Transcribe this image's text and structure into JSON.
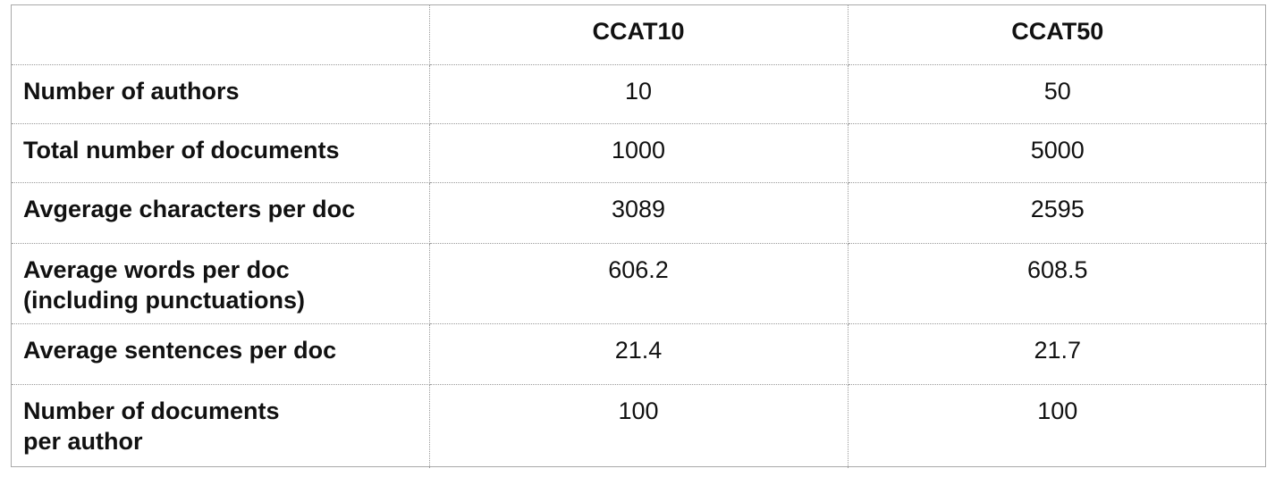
{
  "table": {
    "headers": [
      "",
      "CCAT10",
      "CCAT50"
    ],
    "rows": [
      {
        "label_lines": [
          "Number of authors"
        ],
        "ccat10": "10",
        "ccat50": "50"
      },
      {
        "label_lines": [
          "Total number of documents"
        ],
        "ccat10": "1000",
        "ccat50": "5000"
      },
      {
        "label_lines": [
          "Avgerage characters per doc"
        ],
        "ccat10": "3089",
        "ccat50": "2595"
      },
      {
        "label_lines": [
          "Average words per doc",
          "(including punctuations)"
        ],
        "ccat10": "606.2",
        "ccat50": "608.5"
      },
      {
        "label_lines": [
          "Average sentences per doc"
        ],
        "ccat10": "21.4",
        "ccat50": "21.7"
      },
      {
        "label_lines": [
          "Number of documents",
          "per author"
        ],
        "ccat10": "100",
        "ccat50": "100"
      }
    ]
  }
}
